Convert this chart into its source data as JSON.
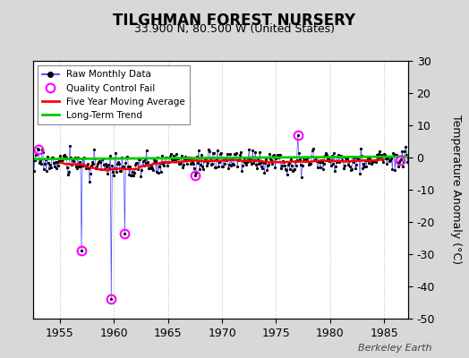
{
  "title": "TILGHMAN FOREST NURSERY",
  "subtitle": "33.900 N, 80.500 W (United States)",
  "ylabel": "Temperature Anomaly (°C)",
  "watermark": "Berkeley Earth",
  "ylim": [
    -50,
    30
  ],
  "xlim": [
    1952.5,
    1987.2
  ],
  "yticks": [
    -50,
    -40,
    -30,
    -20,
    -10,
    0,
    10,
    20,
    30
  ],
  "xticks": [
    1955,
    1960,
    1965,
    1970,
    1975,
    1980,
    1985
  ],
  "bg_color": "#d8d8d8",
  "plot_bg_color": "#ffffff",
  "raw_color": "#3333ff",
  "dot_color": "#000000",
  "moving_avg_color": "#ff0000",
  "trend_color": "#00cc00",
  "qc_fail_color": "#ff00ff",
  "start_year": 1952.5,
  "n_months": 420,
  "qc_fail_times": [
    1957.0,
    1953.0,
    1959.75,
    1961.0,
    1967.5,
    1977.0,
    1986.5
  ],
  "qc_fail_values": [
    -29.0,
    2.5,
    -44.0,
    -23.5,
    -5.5,
    7.0,
    -0.8
  ],
  "noise_scale": 1.8,
  "seed": 17
}
